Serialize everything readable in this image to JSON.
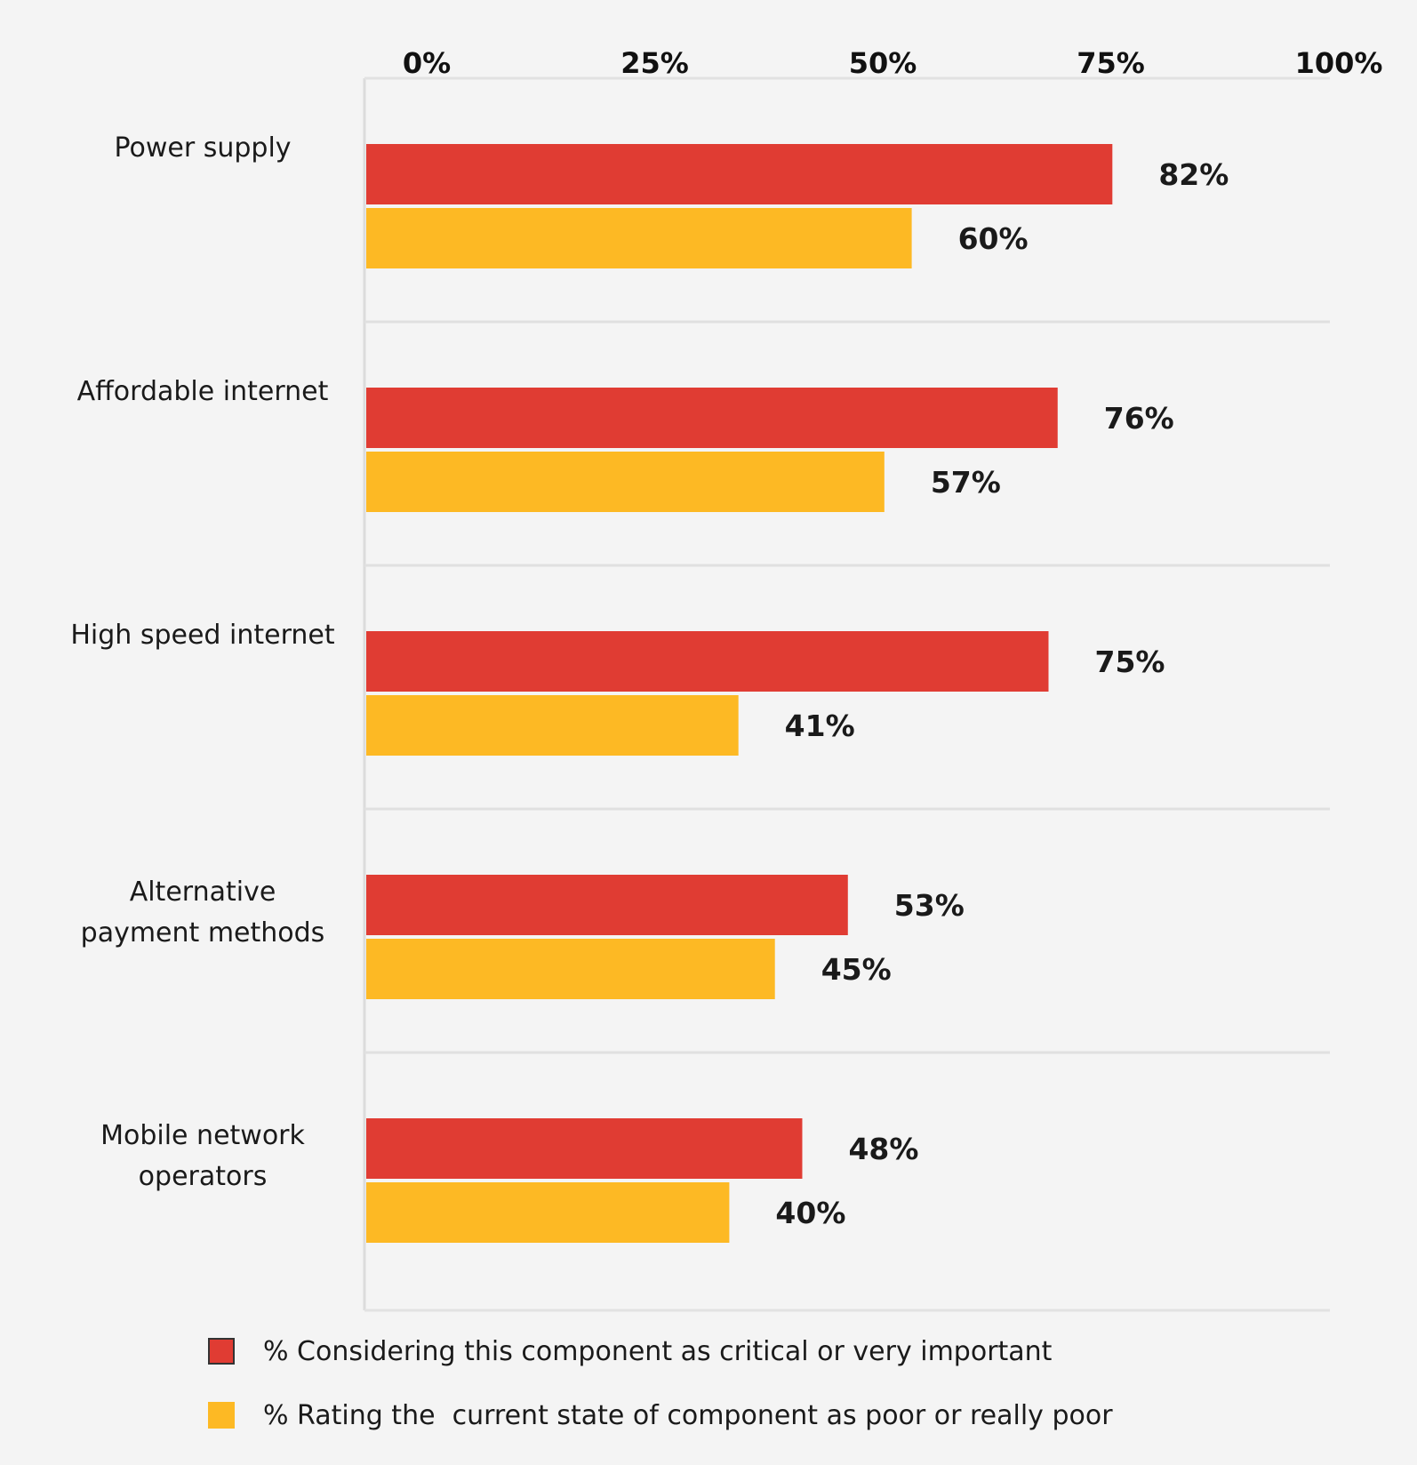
{
  "chart_data": {
    "type": "bar",
    "orientation": "horizontal",
    "categories": [
      "Power supply",
      "Affordable internet",
      "High speed internet",
      "Alternative payment methods",
      "Mobile network operators"
    ],
    "category_lines": [
      [
        "Power supply"
      ],
      [
        "Affordable internet"
      ],
      [
        "High speed internet"
      ],
      [
        "Alternative",
        "payment methods"
      ],
      [
        "Mobile network",
        "operators"
      ]
    ],
    "series": [
      {
        "name": "% Considering this component as critical or very important",
        "color": "#e03c33",
        "values": [
          82,
          76,
          75,
          53,
          48
        ],
        "labels": [
          "82%",
          "76%",
          "75%",
          "53%",
          "48%"
        ]
      },
      {
        "name": "% Rating the  current state of component as poor or really poor",
        "color": "#fdb924",
        "values": [
          60,
          57,
          41,
          45,
          40
        ],
        "labels": [
          "60%",
          "57%",
          "41%",
          "45%",
          "40%"
        ]
      }
    ],
    "x_ticks": [
      0,
      25,
      50,
      75,
      100
    ],
    "x_tick_labels": [
      "0%",
      "25%",
      "50%",
      "75%",
      "100%"
    ],
    "xlim": [
      0,
      100
    ],
    "x_axis_position": "top",
    "grid": false,
    "legend_position": "bottom"
  }
}
